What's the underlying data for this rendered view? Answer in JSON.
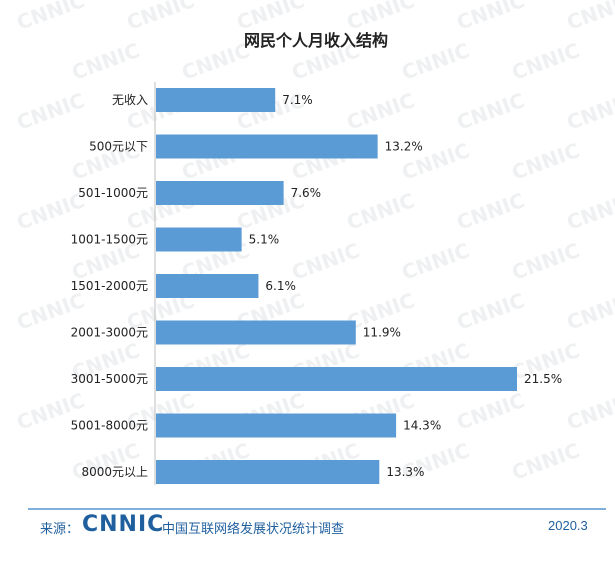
{
  "chart_data": {
    "type": "bar",
    "orientation": "horizontal",
    "title": "网民个人月收入结构",
    "categories": [
      "无收入",
      "500元以下",
      "501-1000元",
      "1001-1500元",
      "1501-2000元",
      "2001-3000元",
      "3001-5000元",
      "5001-8000元",
      "8000元以上"
    ],
    "values": [
      7.1,
      13.2,
      7.6,
      5.1,
      6.1,
      11.9,
      21.5,
      14.3,
      13.3
    ],
    "value_labels": [
      "7.1%",
      "13.2%",
      "7.6%",
      "5.1%",
      "6.1%",
      "11.9%",
      "21.5%",
      "14.3%",
      "13.3%"
    ],
    "xlim": [
      0,
      21.5
    ],
    "grid": false,
    "bar_color": "#5b9bd5"
  },
  "watermark": "CNNIC",
  "footer": {
    "source_label": "来源：",
    "logo_text": "CNNIC",
    "org": "中国互联网络发展状况统计调查",
    "date": "2020.3"
  }
}
